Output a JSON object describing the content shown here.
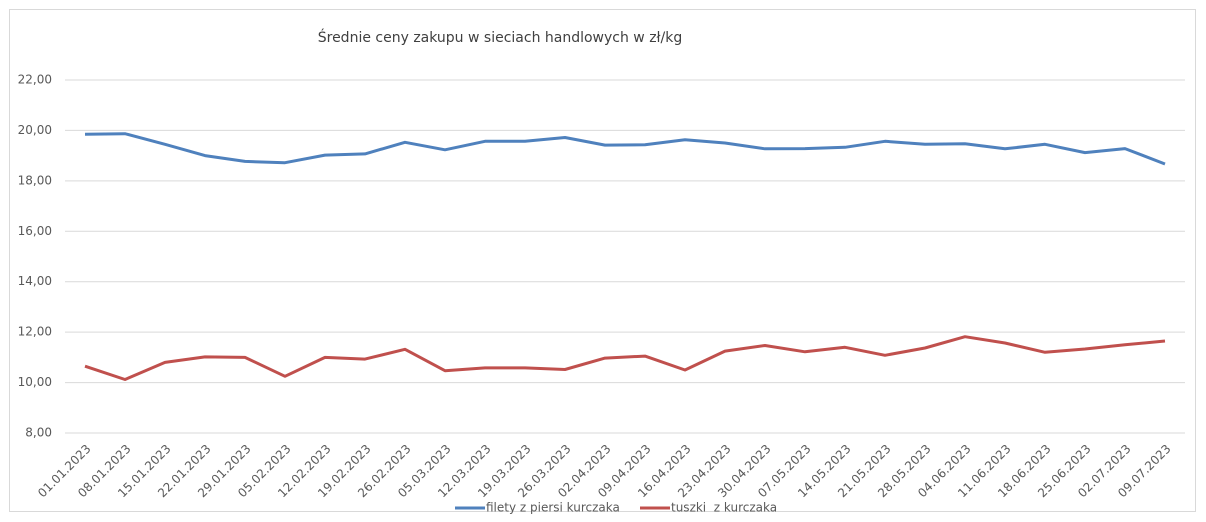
{
  "chart_data": {
    "type": "line",
    "title": "Średnie ceny zakupu w sieciach handlowych w zł/kg",
    "categories": [
      "01.01.2023",
      "08.01.2023",
      "15.01.2023",
      "22.01.2023",
      "29.01.2023",
      "05.02.2023",
      "12.02.2023",
      "19.02.2023",
      "26.02.2023",
      "05.03.2023",
      "12.03.2023",
      "19.03.2023",
      "26.03.2023",
      "02.04.2023",
      "09.04.2023",
      "16.04.2023",
      "23.04.2023",
      "30.04.2023",
      "07.05.2023",
      "14.05.2023",
      "21.05.2023",
      "28.05.2023",
      "04.06.2023",
      "11.06.2023",
      "18.06.2023",
      "25.06.2023",
      "02.07.2023",
      "09.07.2023"
    ],
    "series": [
      {
        "name": "filety z piersi kurczaka",
        "color": "#4f81bd",
        "values": [
          19.85,
          19.87,
          19.45,
          19.0,
          18.77,
          18.72,
          19.02,
          19.07,
          19.53,
          19.23,
          19.57,
          19.57,
          19.72,
          19.42,
          19.43,
          19.63,
          19.5,
          19.27,
          19.28,
          19.33,
          19.57,
          19.45,
          19.47,
          19.27,
          19.45,
          19.12,
          19.28,
          18.67
        ]
      },
      {
        "name": "tuszki  z kurczaka",
        "color": "#c0504d",
        "values": [
          10.65,
          10.12,
          10.8,
          11.02,
          11.0,
          10.25,
          11.0,
          10.93,
          11.32,
          10.47,
          10.58,
          10.58,
          10.52,
          10.97,
          11.05,
          10.5,
          11.25,
          11.47,
          11.22,
          11.4,
          11.08,
          11.37,
          11.82,
          11.57,
          11.2,
          11.33,
          11.5,
          11.65
        ]
      }
    ],
    "ylim": [
      8,
      22
    ],
    "yticks": [
      {
        "value": 8,
        "label": "8,00"
      },
      {
        "value": 10,
        "label": "10,00"
      },
      {
        "value": 12,
        "label": "12,00"
      },
      {
        "value": 14,
        "label": "14,00"
      },
      {
        "value": 16,
        "label": "16,00"
      },
      {
        "value": 18,
        "label": "18,00"
      },
      {
        "value": 20,
        "label": "20,00"
      },
      {
        "value": 22,
        "label": "22,00"
      }
    ],
    "grid": true,
    "legend": "bottom"
  }
}
